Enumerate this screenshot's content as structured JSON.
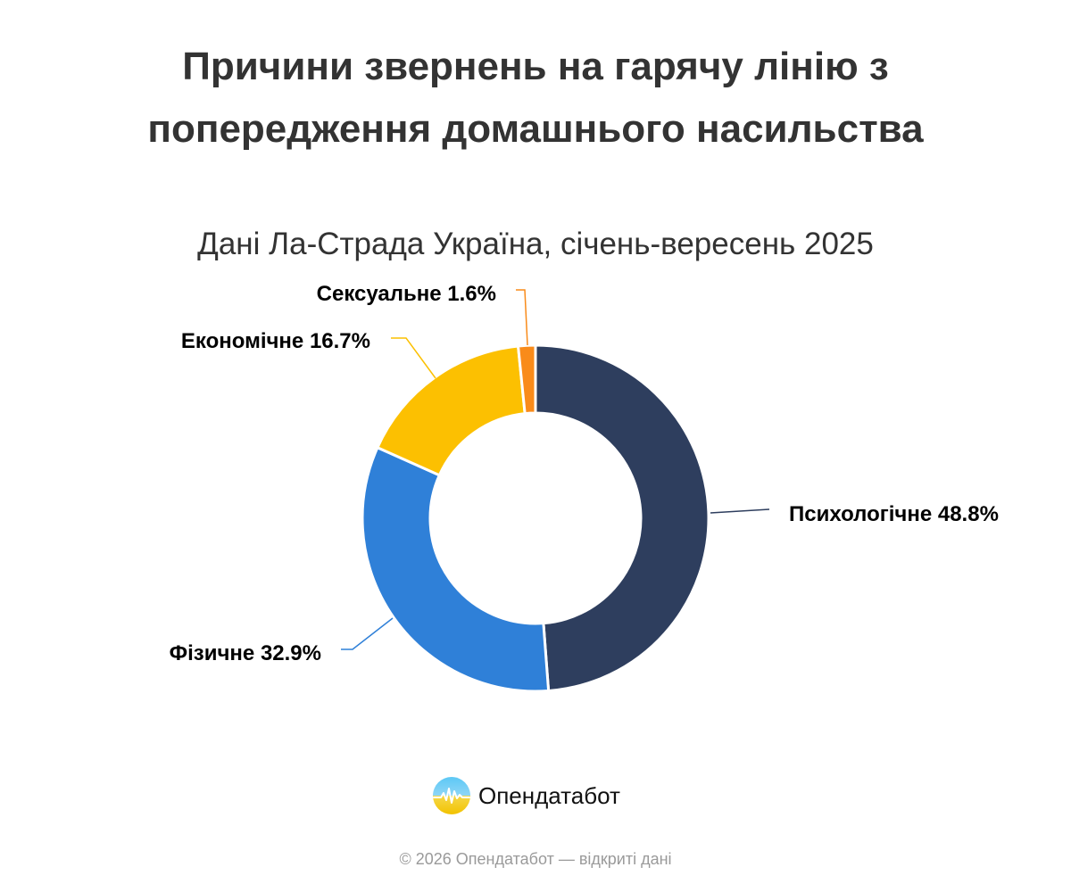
{
  "header": {
    "title": "Причини звернень на гарячу лінію з попередження домашнього насильства",
    "subtitle": "Дані Ла-Страда Україна, січень-вересень 2025"
  },
  "chart_data": {
    "type": "pie",
    "variant": "donut",
    "title": "Причини звернень на гарячу лінію з попередження домашнього насильства",
    "subtitle": "Дані Ла-Страда Україна, січень-вересень 2025",
    "unit": "%",
    "legend": "none",
    "categories": [
      "Психологічне",
      "Фізичне",
      "Економічне",
      "Сексуальне"
    ],
    "values": [
      48.8,
      32.9,
      16.7,
      1.6
    ],
    "colors": [
      "#2e3e5e",
      "#2f80d8",
      "#fcc001",
      "#f98b1a"
    ],
    "data_labels": [
      "Психологічне 48.8%",
      "Фізичне 32.9%",
      "Економічне 16.7%",
      "Сексуальне 1.6%"
    ]
  },
  "brand": {
    "name": "Опендатабот",
    "logo_icon": "opendatabot-logo-icon"
  },
  "footer": {
    "text": "© 2026 Опендатабот — відкриті дані"
  }
}
